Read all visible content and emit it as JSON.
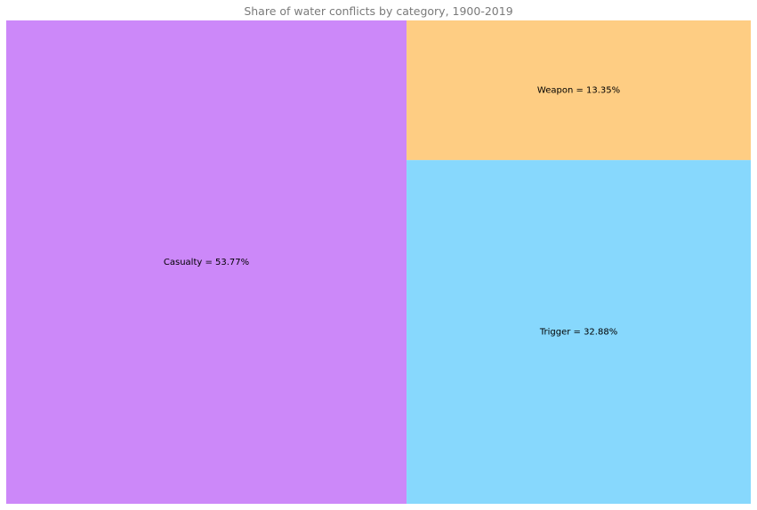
{
  "chart_data": {
    "type": "treemap",
    "title": "Share of water conflicts by category, 1900-2019",
    "categories": [
      "Casualty",
      "Trigger",
      "Weapon"
    ],
    "values": [
      53.77,
      32.88,
      13.35
    ],
    "labels": [
      "Casualty = 53.77%",
      "Trigger = 32.88%",
      "Weapon = 13.35%"
    ],
    "colors": [
      "#cc88f9",
      "#87d8fd",
      "#fecd83"
    ]
  }
}
